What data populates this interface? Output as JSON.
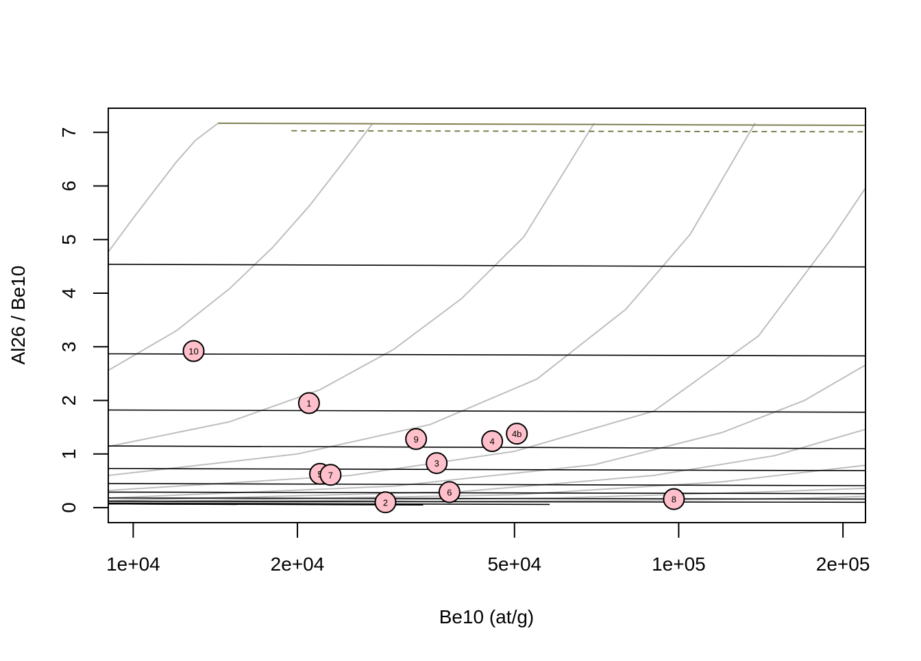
{
  "chart_data": {
    "type": "scatter",
    "title": "",
    "xlabel": "Be10 (at/g)",
    "ylabel": "Al26 / Be10",
    "x_scale": "log",
    "xlim": [
      9000,
      220000
    ],
    "ylim": [
      -0.28,
      7.45
    ],
    "x_ticks": [
      {
        "value": 10000,
        "label": "1e+04"
      },
      {
        "value": 20000,
        "label": "2e+04"
      },
      {
        "value": 50000,
        "label": "5e+04"
      },
      {
        "value": 100000,
        "label": "1e+05"
      },
      {
        "value": 200000,
        "label": "2e+05"
      }
    ],
    "y_ticks": [
      {
        "value": 0,
        "label": "0"
      },
      {
        "value": 1,
        "label": "1"
      },
      {
        "value": 2,
        "label": "2"
      },
      {
        "value": 3,
        "label": "3"
      },
      {
        "value": 4,
        "label": "4"
      },
      {
        "value": 5,
        "label": "5"
      },
      {
        "value": 6,
        "label": "6"
      },
      {
        "value": 7,
        "label": "7"
      }
    ],
    "grid": false,
    "colors": {
      "point_fill": "#ffc0cb",
      "point_stroke": "#000000",
      "isochron": "#bebebe",
      "burial_line": "#000000",
      "steady_state": "#7f7f4f"
    },
    "samples": [
      {
        "label": "1",
        "x": 21000,
        "y": 1.95
      },
      {
        "label": "2",
        "x": 29000,
        "y": 0.1
      },
      {
        "label": "3",
        "x": 36000,
        "y": 0.83
      },
      {
        "label": "4",
        "x": 45500,
        "y": 1.24
      },
      {
        "label": "4b",
        "x": 50500,
        "y": 1.38
      },
      {
        "label": "5",
        "x": 22000,
        "y": 0.63
      },
      {
        "label": "6",
        "x": 38000,
        "y": 0.29
      },
      {
        "label": "7",
        "x": 23000,
        "y": 0.61
      },
      {
        "label": "8",
        "x": 98000,
        "y": 0.16
      },
      {
        "label": "9",
        "x": 33000,
        "y": 1.28
      },
      {
        "label": "10",
        "x": 12900,
        "y": 2.92
      }
    ],
    "steady_state_curve": {
      "x": [
        14300,
        220000
      ],
      "y": [
        7.17,
        7.13
      ]
    },
    "steady_state_dashed": {
      "x": [
        19500,
        220000
      ],
      "y": [
        7.03,
        7.01
      ]
    },
    "burial_lines": [
      {
        "x": [
          9000,
          220000
        ],
        "y": [
          4.54,
          4.49
        ]
      },
      {
        "x": [
          9000,
          220000
        ],
        "y": [
          2.87,
          2.83
        ]
      },
      {
        "x": [
          9000,
          220000
        ],
        "y": [
          1.82,
          1.78
        ]
      },
      {
        "x": [
          9000,
          220000
        ],
        "y": [
          1.15,
          1.1
        ]
      },
      {
        "x": [
          9000,
          220000
        ],
        "y": [
          0.73,
          0.69
        ]
      },
      {
        "x": [
          9000,
          220000
        ],
        "y": [
          0.45,
          0.41
        ]
      },
      {
        "x": [
          9000,
          220000
        ],
        "y": [
          0.29,
          0.26
        ]
      },
      {
        "x": [
          9000,
          220000
        ],
        "y": [
          0.18,
          0.16
        ]
      },
      {
        "x": [
          9000,
          220000
        ],
        "y": [
          0.12,
          0.1
        ]
      },
      {
        "x": [
          9000,
          58000
        ],
        "y": [
          0.08,
          0.06
        ]
      },
      {
        "x": [
          9000,
          34000
        ],
        "y": [
          0.07,
          0.05
        ]
      },
      {
        "x": [
          9000,
          15500
        ],
        "y": [
          0.07,
          0.06
        ]
      }
    ],
    "isochrons": [
      {
        "x": [
          9000,
          10000,
          11000,
          12000,
          13000,
          14300
        ],
        "y": [
          4.77,
          5.4,
          5.95,
          6.45,
          6.85,
          7.17
        ]
      },
      {
        "x": [
          9000,
          12000,
          15000,
          18000,
          21000,
          24000,
          27500
        ],
        "y": [
          2.56,
          3.3,
          4.08,
          4.85,
          5.62,
          6.38,
          7.17
        ]
      },
      {
        "x": [
          9000,
          15000,
          22000,
          30000,
          40000,
          52000,
          70000
        ],
        "y": [
          1.14,
          1.6,
          2.2,
          2.95,
          3.9,
          5.05,
          7.17
        ]
      },
      {
        "x": [
          9000,
          20000,
          35000,
          55000,
          80000,
          105000,
          138000
        ],
        "y": [
          0.6,
          1.0,
          1.55,
          2.4,
          3.7,
          5.1,
          7.17
        ]
      },
      {
        "x": [
          9000,
          25000,
          50000,
          90000,
          140000,
          190000,
          220000
        ],
        "y": [
          0.32,
          0.6,
          1.05,
          1.8,
          3.2,
          5.0,
          5.96
        ]
      },
      {
        "x": [
          9000,
          30000,
          70000,
          120000,
          170000,
          220000
        ],
        "y": [
          0.18,
          0.4,
          0.8,
          1.4,
          2.0,
          2.66
        ]
      },
      {
        "x": [
          9000,
          40000,
          90000,
          150000,
          220000
        ],
        "y": [
          0.13,
          0.3,
          0.6,
          0.97,
          1.46
        ]
      },
      {
        "x": [
          9000,
          50000,
          120000,
          220000
        ],
        "y": [
          0.1,
          0.24,
          0.48,
          0.79
        ]
      },
      {
        "x": [
          9000,
          60000,
          150000,
          220000
        ],
        "y": [
          0.09,
          0.18,
          0.3,
          0.36
        ]
      },
      {
        "x": [
          9000,
          80000,
          160000,
          220000
        ],
        "y": [
          0.08,
          0.13,
          0.17,
          0.21
        ]
      }
    ]
  }
}
